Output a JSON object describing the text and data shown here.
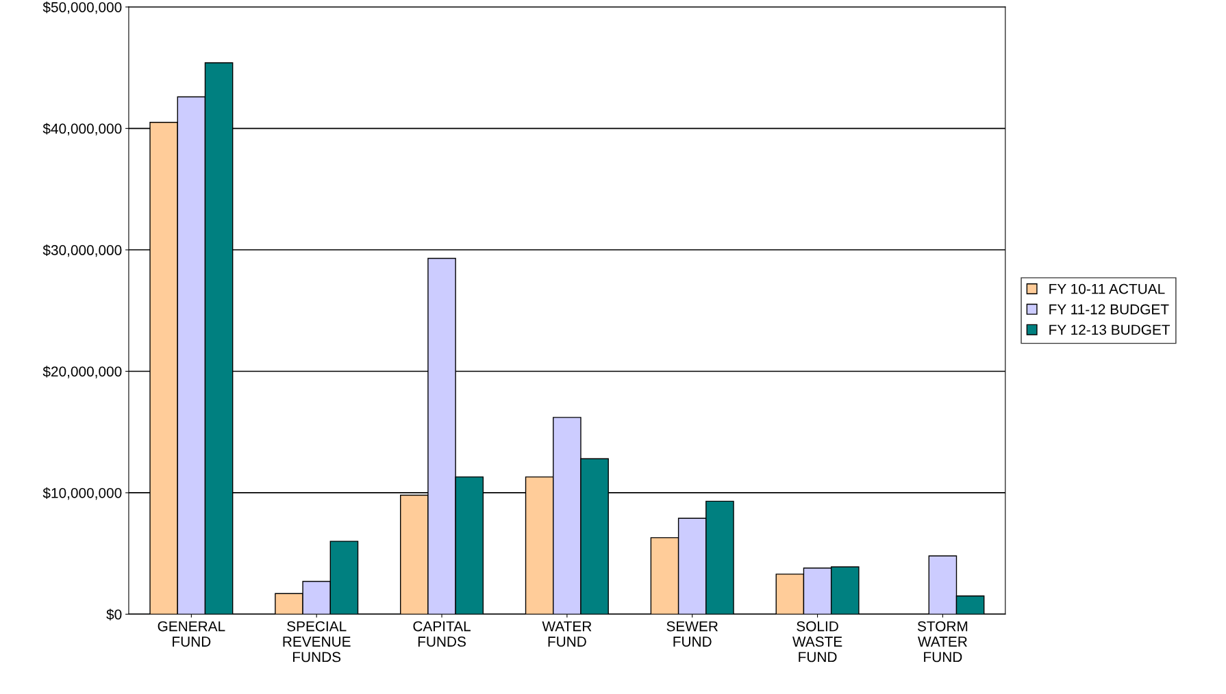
{
  "chart_data": {
    "type": "bar",
    "categories": [
      "GENERAL\nFUND",
      "SPECIAL\nREVENUE\nFUNDS",
      "CAPITAL\nFUNDS",
      "WATER\nFUND",
      "SEWER\nFUND",
      "SOLID\nWASTE\nFUND",
      "STORM\nWATER\nFUND"
    ],
    "series": [
      {
        "name": "FY 10-11 ACTUAL",
        "color": "#ffcc99",
        "values": [
          40500000,
          1700000,
          9800000,
          11300000,
          6300000,
          3300000,
          0
        ]
      },
      {
        "name": "FY 11-12 BUDGET",
        "color": "#ccccff",
        "values": [
          42600000,
          2700000,
          29300000,
          16200000,
          7900000,
          3800000,
          4800000
        ]
      },
      {
        "name": "FY 12-13 BUDGET",
        "color": "#008080",
        "values": [
          45400000,
          6000000,
          11300000,
          12800000,
          9300000,
          3900000,
          1500000
        ]
      }
    ],
    "ylim": [
      0,
      50000000
    ],
    "yticks": [
      {
        "value": 0,
        "label": "$0"
      },
      {
        "value": 10000000,
        "label": "$10,000,000"
      },
      {
        "value": 20000000,
        "label": "$20,000,000"
      },
      {
        "value": 30000000,
        "label": "$30,000,000"
      },
      {
        "value": 40000000,
        "label": "$40,000,000"
      },
      {
        "value": 50000000,
        "label": "$50,000,000"
      }
    ],
    "grid": "y",
    "legend": "right"
  }
}
